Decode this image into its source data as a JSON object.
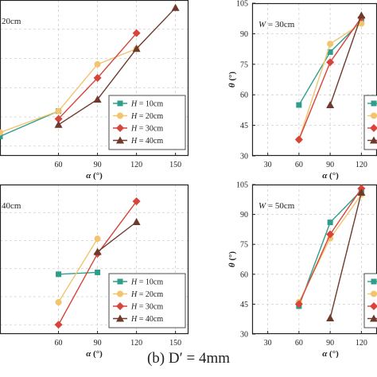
{
  "caption": "(b) D′ = 4mm",
  "colors": {
    "H = 10cm": "#2e9e8a",
    "H = 20cm": "#f2c46e",
    "H = 30cm": "#d6443a",
    "H = 40cm": "#6e3a2c"
  },
  "chart_data": [
    {
      "type": "line",
      "panel": "top-left",
      "label": "20cm",
      "xlabel": "α (°)",
      "xticks": [
        60,
        90,
        120,
        150
      ],
      "xlim": [
        15,
        160
      ],
      "ylim": [
        25,
        105
      ],
      "legend": [
        "H = 10cm",
        "H = 20cm",
        "H = 30cm",
        "H = 40cm"
      ],
      "legend_position": "bottom-right",
      "series": [
        {
          "name": "H = 10cm",
          "marker": "square",
          "x": [
            15,
            60
          ],
          "y": [
            35,
            48
          ]
        },
        {
          "name": "H = 20cm",
          "marker": "circle",
          "x": [
            15,
            60,
            90,
            120
          ],
          "y": [
            37,
            48,
            72,
            80
          ]
        },
        {
          "name": "H = 30cm",
          "marker": "diamond",
          "x": [
            60,
            90,
            120
          ],
          "y": [
            44,
            65,
            88
          ]
        },
        {
          "name": "H = 40cm",
          "marker": "triangle",
          "x": [
            60,
            90,
            120,
            150
          ],
          "y": [
            41,
            54,
            80,
            101
          ]
        }
      ]
    },
    {
      "type": "line",
      "panel": "top-right",
      "label": "W = 30cm",
      "xlabel": "α (°)",
      "ylabel": "θ (°)",
      "xticks": [
        30,
        60,
        90,
        120
      ],
      "yticks": [
        30,
        45,
        60,
        75,
        90,
        105
      ],
      "xlim": [
        15,
        135
      ],
      "ylim": [
        30,
        105
      ],
      "legend_position": "bottom-right",
      "series": [
        {
          "name": "H = 10cm",
          "marker": "square",
          "x": [
            60,
            90,
            120
          ],
          "y": [
            55,
            81,
            96
          ]
        },
        {
          "name": "H = 20cm",
          "marker": "circle",
          "x": [
            60,
            90,
            120
          ],
          "y": [
            38,
            85,
            95
          ]
        },
        {
          "name": "H = 30cm",
          "marker": "diamond",
          "x": [
            60,
            90,
            120
          ],
          "y": [
            38,
            76,
            98
          ]
        },
        {
          "name": "H = 40cm",
          "marker": "triangle",
          "x": [
            90,
            120
          ],
          "y": [
            55,
            99
          ]
        }
      ]
    },
    {
      "type": "line",
      "panel": "bottom-left",
      "label": "40cm",
      "xlabel": "α (°)",
      "xticks": [
        60,
        90,
        120,
        150
      ],
      "xlim": [
        15,
        160
      ],
      "ylim": [
        25,
        105
      ],
      "legend": [
        "H = 10cm",
        "H = 20cm",
        "H = 30cm",
        "H = 40cm"
      ],
      "legend_position": "bottom-right",
      "series": [
        {
          "name": "H = 10cm",
          "marker": "square",
          "x": [
            60,
            90
          ],
          "y": [
            57,
            58
          ]
        },
        {
          "name": "H = 20cm",
          "marker": "circle",
          "x": [
            60,
            90
          ],
          "y": [
            42,
            76
          ]
        },
        {
          "name": "H = 30cm",
          "marker": "diamond",
          "x": [
            60,
            90,
            120
          ],
          "y": [
            30,
            68,
            96
          ]
        },
        {
          "name": "H = 40cm",
          "marker": "triangle",
          "x": [
            90,
            120
          ],
          "y": [
            69,
            85
          ]
        }
      ]
    },
    {
      "type": "line",
      "panel": "bottom-right",
      "label": "W = 50cm",
      "xlabel": "α (°)",
      "ylabel": "θ (°)",
      "xticks": [
        30,
        60,
        90,
        120
      ],
      "yticks": [
        30,
        45,
        60,
        75,
        90,
        105
      ],
      "xlim": [
        15,
        135
      ],
      "ylim": [
        30,
        105
      ],
      "legend_position": "bottom-right",
      "series": [
        {
          "name": "H = 10cm",
          "marker": "square",
          "x": [
            60,
            90,
            120
          ],
          "y": [
            44,
            86,
            102
          ]
        },
        {
          "name": "H = 20cm",
          "marker": "circle",
          "x": [
            60,
            90,
            120
          ],
          "y": [
            46,
            78,
            100
          ]
        },
        {
          "name": "H = 30cm",
          "marker": "diamond",
          "x": [
            60,
            90,
            120
          ],
          "y": [
            45,
            80,
            103
          ]
        },
        {
          "name": "H = 40cm",
          "marker": "triangle",
          "x": [
            90,
            120
          ],
          "y": [
            38,
            101
          ]
        }
      ]
    }
  ]
}
